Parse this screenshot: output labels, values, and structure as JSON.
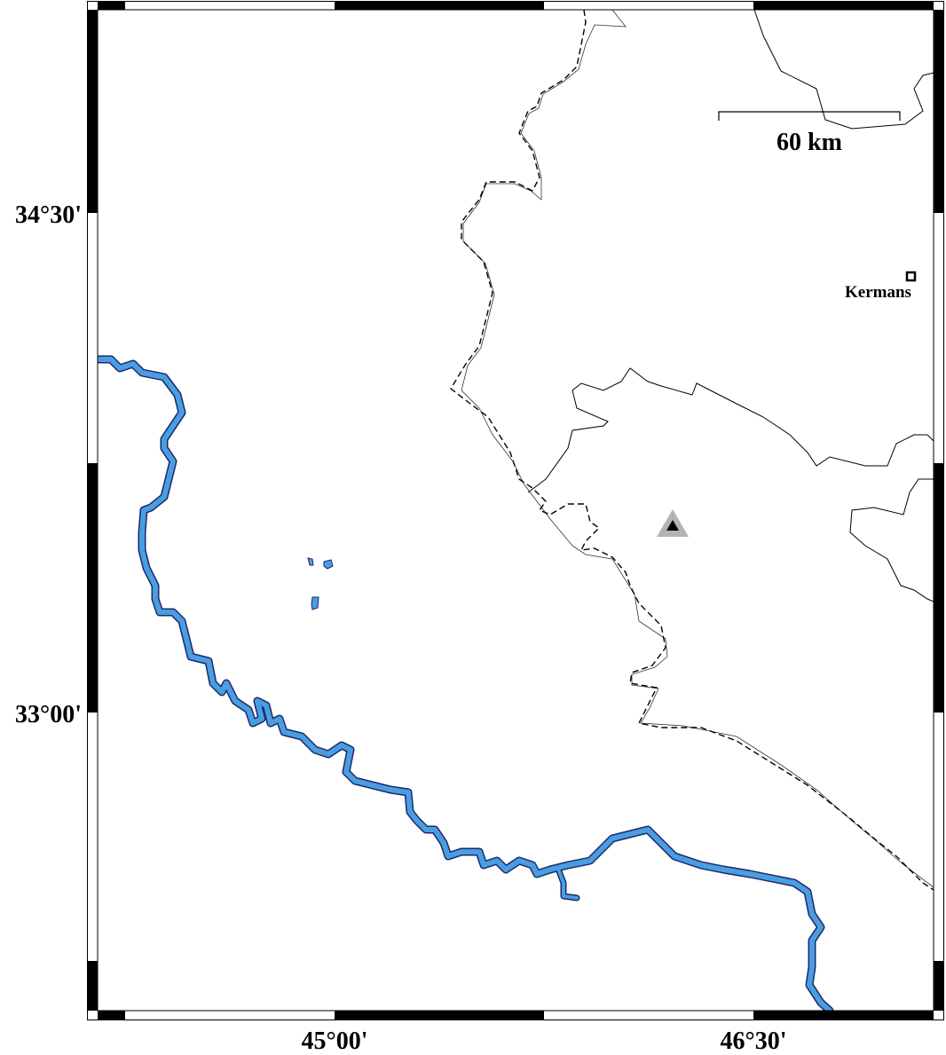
{
  "map": {
    "axes": {
      "lat_labels": [
        "34°30'",
        "33°00'"
      ],
      "lon_labels": [
        "45°00'",
        "46°30'"
      ]
    },
    "scale_bar": {
      "label": "60 km"
    },
    "places": [
      {
        "name": "Kermans",
        "symbol": "square"
      }
    ],
    "markers": [
      {
        "symbol": "triangle",
        "fill": "#000000",
        "halo": "#b3b3b3"
      }
    ],
    "colors": {
      "river": "#4a9de0",
      "river_outline": "#1a2a6a",
      "border": "#000000",
      "frame": "#000000"
    },
    "legend_lines": {
      "international_border": "dashed",
      "province_border": "solid"
    }
  }
}
